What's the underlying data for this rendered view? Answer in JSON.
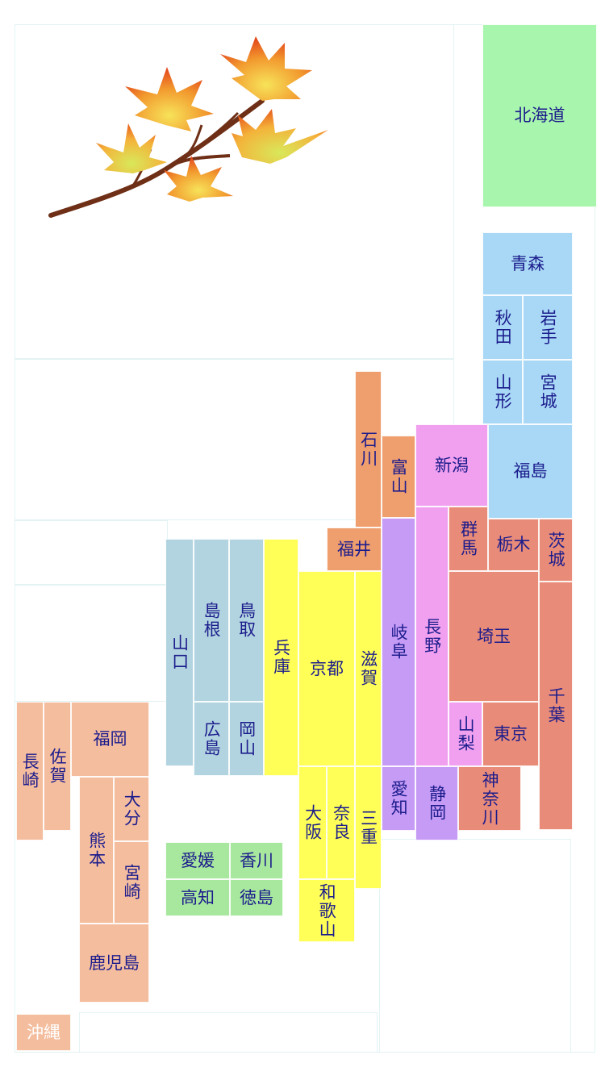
{
  "colors": {
    "hokkaido": "#a8f5ad",
    "tohoku": "#a8d8f6",
    "kanto": "#e88b78",
    "chubu_hokuriku": "#ef9e6e",
    "nagano": "#f0a0ef",
    "chubu_tokai": "#c69bf6",
    "kinki": "#ffff58",
    "chugoku": "#b2d4e0",
    "shikoku": "#a8e89e",
    "kyushu": "#f4bd9e",
    "text": "#1c1c8c"
  },
  "decoration": {
    "icon": "maple-leaves-icon"
  },
  "prefectures": {
    "hokkaido": "北海道",
    "aomori": "青森",
    "akita": "秋田",
    "iwate": "岩手",
    "yamagata": "山形",
    "miyagi": "宮城",
    "fukushima": "福島",
    "niigata": "新潟",
    "ishikawa": "石川",
    "toyama": "富山",
    "fukui": "福井",
    "gunma": "群馬",
    "tochigi": "栃木",
    "ibaraki": "茨城",
    "saitama": "埼玉",
    "chiba": "千葉",
    "tokyo": "東京",
    "kanagawa": "神奈川",
    "yamanashi": "山梨",
    "nagano": "長野",
    "gifu": "岐阜",
    "shizuoka": "静岡",
    "aichi": "愛知",
    "shiga": "滋賀",
    "kyoto": "京都",
    "hyogo": "兵庫",
    "osaka": "大阪",
    "nara": "奈良",
    "mie": "三重",
    "wakayama": "和歌山",
    "tottori": "鳥取",
    "shimane": "島根",
    "yamaguchi": "山口",
    "hiroshima": "広島",
    "okayama": "岡山",
    "ehime": "愛媛",
    "kagawa": "香川",
    "kochi": "高知",
    "tokushima": "徳島",
    "fukuoka": "福岡",
    "saga": "佐賀",
    "nagasaki": "長崎",
    "oita": "大分",
    "kumamoto": "熊本",
    "miyazaki": "宮崎",
    "kagoshima": "鹿児島",
    "okinawa": "沖縄"
  }
}
